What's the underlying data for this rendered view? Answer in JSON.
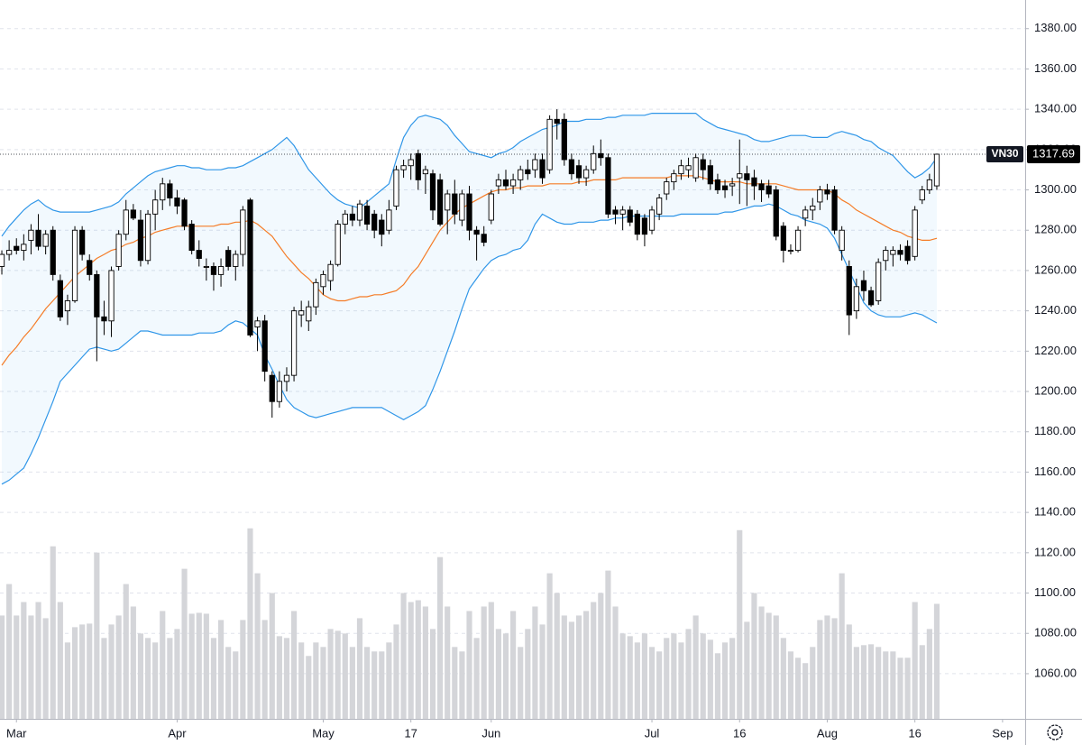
{
  "chart_data": {
    "type": "candlestick",
    "symbol": "VN30",
    "open": [
      1262,
      1268,
      1272,
      1270,
      1275,
      1280,
      1272,
      1280,
      1255,
      1240,
      1245,
      1280,
      1265,
      1258,
      1237,
      1235,
      1262,
      1278,
      1290,
      1285,
      1265,
      1288,
      1295,
      1303,
      1296,
      1295,
      1283,
      1270,
      1262,
      1262,
      1258,
      1270,
      1262,
      1268,
      1295,
      1232,
      1235,
      1208,
      1195,
      1205,
      1208,
      1238,
      1235,
      1242,
      1252,
      1255,
      1263,
      1283,
      1288,
      1285,
      1292,
      1288,
      1285,
      1280,
      1292,
      1310,
      1312,
      1318,
      1308,
      1308,
      1305,
      1290,
      1298,
      1285,
      1298,
      1280,
      1278,
      1285,
      1302,
      1305,
      1302,
      1305,
      1310,
      1310,
      1315,
      1310,
      1335,
      1335,
      1315,
      1312,
      1306,
      1310,
      1318,
      1316,
      1290,
      1288,
      1290,
      1288,
      1286,
      1280,
      1288,
      1298,
      1304,
      1308,
      1310,
      1306,
      1315,
      1312,
      1305,
      1302,
      1302,
      1306,
      1308,
      1306,
      1303,
      1302,
      1300,
      1282,
      1270,
      1270,
      1286,
      1290,
      1294,
      1300,
      1300,
      1270,
      1262,
      1240,
      1255,
      1250,
      1245,
      1265,
      1268,
      1270,
      1272,
      1267,
      1295,
      1300,
      1302
    ],
    "high": [
      1270,
      1275,
      1276,
      1278,
      1283,
      1288,
      1280,
      1282,
      1258,
      1248,
      1282,
      1282,
      1268,
      1260,
      1245,
      1262,
      1280,
      1295,
      1293,
      1290,
      1290,
      1300,
      1306,
      1305,
      1300,
      1296,
      1285,
      1275,
      1266,
      1264,
      1266,
      1272,
      1270,
      1292,
      1296,
      1237,
      1238,
      1210,
      1210,
      1212,
      1242,
      1245,
      1245,
      1256,
      1260,
      1265,
      1285,
      1290,
      1292,
      1295,
      1295,
      1290,
      1288,
      1295,
      1312,
      1315,
      1318,
      1320,
      1312,
      1310,
      1308,
      1300,
      1305,
      1300,
      1302,
      1282,
      1282,
      1300,
      1308,
      1310,
      1308,
      1312,
      1315,
      1318,
      1318,
      1337,
      1340,
      1338,
      1318,
      1315,
      1312,
      1322,
      1325,
      1318,
      1292,
      1292,
      1292,
      1290,
      1288,
      1292,
      1298,
      1306,
      1310,
      1315,
      1316,
      1318,
      1318,
      1315,
      1308,
      1305,
      1306,
      1325,
      1312,
      1310,
      1305,
      1305,
      1302,
      1284,
      1273,
      1282,
      1292,
      1296,
      1302,
      1303,
      1302,
      1282,
      1265,
      1256,
      1260,
      1252,
      1266,
      1272,
      1272,
      1273,
      1275,
      1292,
      1302,
      1308,
      1318
    ],
    "low": [
      1258,
      1265,
      1268,
      1265,
      1268,
      1270,
      1268,
      1255,
      1235,
      1233,
      1244,
      1265,
      1255,
      1215,
      1228,
      1227,
      1260,
      1275,
      1285,
      1262,
      1263,
      1280,
      1290,
      1292,
      1288,
      1280,
      1268,
      1262,
      1255,
      1250,
      1252,
      1260,
      1255,
      1262,
      1227,
      1220,
      1205,
      1187,
      1192,
      1200,
      1205,
      1232,
      1230,
      1238,
      1248,
      1250,
      1262,
      1278,
      1282,
      1282,
      1280,
      1276,
      1272,
      1278,
      1290,
      1306,
      1305,
      1300,
      1298,
      1285,
      1282,
      1278,
      1283,
      1282,
      1275,
      1265,
      1272,
      1283,
      1298,
      1300,
      1298,
      1300,
      1305,
      1306,
      1303,
      1308,
      1325,
      1312,
      1305,
      1303,
      1302,
      1308,
      1312,
      1286,
      1283,
      1280,
      1282,
      1275,
      1272,
      1278,
      1285,
      1295,
      1300,
      1305,
      1306,
      1304,
      1305,
      1300,
      1298,
      1296,
      1297,
      1293,
      1292,
      1295,
      1294,
      1296,
      1275,
      1264,
      1268,
      1269,
      1282,
      1285,
      1290,
      1295,
      1278,
      1265,
      1228,
      1236,
      1245,
      1242,
      1243,
      1260,
      1262,
      1265,
      1263,
      1265,
      1293,
      1298,
      1300
    ],
    "close": [
      1268,
      1270,
      1270,
      1273,
      1280,
      1272,
      1278,
      1258,
      1237,
      1245,
      1280,
      1268,
      1258,
      1237,
      1235,
      1260,
      1278,
      1290,
      1286,
      1265,
      1288,
      1295,
      1303,
      1296,
      1292,
      1282,
      1270,
      1266,
      1262,
      1258,
      1262,
      1262,
      1268,
      1290,
      1228,
      1235,
      1210,
      1195,
      1205,
      1208,
      1240,
      1240,
      1242,
      1254,
      1258,
      1263,
      1283,
      1288,
      1285,
      1293,
      1283,
      1280,
      1278,
      1290,
      1310,
      1312,
      1315,
      1305,
      1310,
      1290,
      1283,
      1298,
      1288,
      1298,
      1280,
      1278,
      1274,
      1298,
      1305,
      1302,
      1305,
      1310,
      1308,
      1315,
      1306,
      1335,
      1333,
      1315,
      1308,
      1306,
      1310,
      1318,
      1316,
      1288,
      1288,
      1290,
      1284,
      1278,
      1278,
      1290,
      1296,
      1304,
      1308,
      1312,
      1312,
      1316,
      1310,
      1303,
      1300,
      1300,
      1303,
      1308,
      1305,
      1302,
      1300,
      1298,
      1277,
      1270,
      1270,
      1280,
      1290,
      1292,
      1300,
      1298,
      1280,
      1280,
      1238,
      1252,
      1250,
      1243,
      1264,
      1270,
      1270,
      1268,
      1265,
      1290,
      1300,
      1305,
      1317.69
    ],
    "volume": [
      115,
      150,
      115,
      130,
      115,
      130,
      112,
      192,
      130,
      85,
      102,
      105,
      106,
      185,
      90,
      105,
      115,
      150,
      125,
      95,
      90,
      85,
      120,
      90,
      100,
      167,
      117,
      118,
      117,
      90,
      110,
      80,
      75,
      110,
      212,
      162,
      110,
      140,
      92,
      90,
      120,
      85,
      70,
      85,
      80,
      100,
      98,
      95,
      80,
      112,
      80,
      75,
      75,
      85,
      105,
      140,
      130,
      132,
      125,
      100,
      180,
      125,
      80,
      75,
      120,
      90,
      125,
      130,
      100,
      95,
      120,
      80,
      100,
      125,
      105,
      162,
      140,
      115,
      108,
      115,
      120,
      130,
      140,
      165,
      125,
      95,
      92,
      85,
      95,
      80,
      75,
      90,
      95,
      85,
      100,
      115,
      95,
      88,
      73,
      85,
      90,
      210,
      108,
      140,
      125,
      118,
      115,
      90,
      75,
      68,
      62,
      80,
      110,
      115,
      112,
      162,
      105,
      80,
      82,
      83,
      80,
      75,
      75,
      68,
      68,
      130,
      82,
      100,
      128
    ],
    "volume_lim": [
      0,
      800
    ],
    "bands": {
      "upper": [
        1277,
        1282,
        1286,
        1290,
        1293,
        1295,
        1292,
        1290,
        1289,
        1289,
        1289,
        1289,
        1289,
        1290,
        1291,
        1292,
        1294,
        1298,
        1301,
        1304,
        1307,
        1309,
        1310,
        1311,
        1312,
        1312,
        1311,
        1311,
        1310,
        1310,
        1310,
        1311,
        1311,
        1312,
        1314,
        1316,
        1318,
        1320,
        1323,
        1326,
        1322,
        1316,
        1310,
        1306,
        1302,
        1298,
        1295,
        1293,
        1292,
        1291,
        1294,
        1297,
        1300,
        1303,
        1315,
        1326,
        1332,
        1336,
        1337,
        1336,
        1335,
        1332,
        1327,
        1323,
        1319,
        1318,
        1317,
        1316,
        1318,
        1319,
        1321,
        1324,
        1326,
        1328,
        1330,
        1331,
        1332,
        1334,
        1334,
        1334,
        1335,
        1335,
        1335,
        1336,
        1336,
        1337,
        1337,
        1337,
        1337,
        1338,
        1338,
        1338,
        1338,
        1338,
        1338,
        1338,
        1335,
        1333,
        1331,
        1330,
        1329,
        1328,
        1327,
        1325,
        1324,
        1324,
        1325,
        1326,
        1327,
        1327,
        1327,
        1326,
        1326,
        1326,
        1328,
        1329,
        1328,
        1327,
        1325,
        1324,
        1321,
        1319,
        1317,
        1313,
        1309,
        1306,
        1308,
        1311,
        1316
      ],
      "middle": [
        1213,
        1218,
        1222,
        1227,
        1231,
        1236,
        1241,
        1245,
        1249,
        1253,
        1257,
        1260,
        1263,
        1266,
        1268,
        1270,
        1271,
        1273,
        1274,
        1276,
        1277,
        1279,
        1280,
        1281,
        1282,
        1282,
        1282,
        1282,
        1282,
        1282,
        1283,
        1283,
        1284,
        1284,
        1285,
        1283,
        1280,
        1277,
        1272,
        1267,
        1263,
        1259,
        1256,
        1252,
        1248,
        1246,
        1245,
        1245,
        1246,
        1247,
        1247,
        1248,
        1248,
        1249,
        1250,
        1253,
        1258,
        1262,
        1268,
        1274,
        1280,
        1284,
        1288,
        1291,
        1293,
        1295,
        1297,
        1299,
        1300,
        1300,
        1301,
        1301,
        1302,
        1302,
        1302,
        1303,
        1303,
        1303,
        1303,
        1304,
        1304,
        1305,
        1305,
        1305,
        1305,
        1306,
        1306,
        1306,
        1306,
        1306,
        1306,
        1306,
        1307,
        1307,
        1307,
        1307,
        1306,
        1305,
        1304,
        1304,
        1304,
        1304,
        1303,
        1303,
        1303,
        1303,
        1303,
        1302,
        1301,
        1300,
        1300,
        1300,
        1300,
        1300,
        1298,
        1295,
        1293,
        1290,
        1288,
        1286,
        1284,
        1282,
        1280,
        1279,
        1277,
        1276,
        1275,
        1275,
        1276
      ],
      "lower": [
        1154,
        1156,
        1159,
        1162,
        1169,
        1177,
        1186,
        1195,
        1205,
        1209,
        1213,
        1217,
        1221,
        1222,
        1221,
        1220,
        1221,
        1224,
        1227,
        1230,
        1230,
        1229,
        1228,
        1228,
        1228,
        1228,
        1228,
        1229,
        1229,
        1229,
        1230,
        1233,
        1235,
        1234,
        1231,
        1228,
        1218,
        1211,
        1203,
        1196,
        1192,
        1190,
        1188,
        1187,
        1188,
        1189,
        1190,
        1191,
        1192,
        1192,
        1192,
        1192,
        1192,
        1190,
        1188,
        1186,
        1188,
        1190,
        1193,
        1201,
        1210,
        1220,
        1230,
        1241,
        1251,
        1256,
        1261,
        1265,
        1267,
        1268,
        1270,
        1271,
        1275,
        1283,
        1288,
        1286,
        1284,
        1283,
        1283,
        1284,
        1284,
        1284,
        1285,
        1285,
        1286,
        1286,
        1287,
        1287,
        1287,
        1287,
        1287,
        1287,
        1287,
        1288,
        1288,
        1288,
        1288,
        1288,
        1288,
        1289,
        1289,
        1290,
        1291,
        1292,
        1292,
        1293,
        1292,
        1290,
        1288,
        1287,
        1285,
        1284,
        1283,
        1281,
        1276,
        1268,
        1260,
        1252,
        1244,
        1240,
        1238,
        1237,
        1237,
        1237,
        1238,
        1239,
        1238,
        1236,
        1234
      ],
      "color": "#2f96e8",
      "middle_color": "#f57c27",
      "fill": "#2196f3"
    },
    "up_color": "#ffffff",
    "down_color": "#000000",
    "volume_color": "#d4d5d9",
    "ylim": [
      1037.6,
      1394.2
    ],
    "yticks": [
      {
        "value": 1060,
        "label": "1060.00"
      },
      {
        "value": 1080,
        "label": "1080.00"
      },
      {
        "value": 1100,
        "label": "1100.00"
      },
      {
        "value": 1120,
        "label": "1120.00"
      },
      {
        "value": 1140,
        "label": "1140.00"
      },
      {
        "value": 1160,
        "label": "1160.00"
      },
      {
        "value": 1180,
        "label": "1180.00"
      },
      {
        "value": 1200,
        "label": "1200.00"
      },
      {
        "value": 1220,
        "label": "1220.00"
      },
      {
        "value": 1240,
        "label": "1240.00"
      },
      {
        "value": 1260,
        "label": "1260.00"
      },
      {
        "value": 1280,
        "label": "1280.00"
      },
      {
        "value": 1300,
        "label": "1300.00"
      },
      {
        "value": 1320,
        "label": "1320.00"
      },
      {
        "value": 1340,
        "label": "1340.00"
      },
      {
        "value": 1360,
        "label": "1360.00"
      },
      {
        "value": 1380,
        "label": "1380.00"
      }
    ],
    "xlim": [
      -0.25,
      140.1
    ],
    "xticks": [
      {
        "value": 2,
        "label": "Mar"
      },
      {
        "value": 24,
        "label": "Apr"
      },
      {
        "value": 44,
        "label": "May"
      },
      {
        "value": 56,
        "label": "17"
      },
      {
        "value": 67,
        "label": "Jun"
      },
      {
        "value": 89,
        "label": "Jul"
      },
      {
        "value": 101,
        "label": "16"
      },
      {
        "value": 113,
        "label": "Aug"
      },
      {
        "value": 125,
        "label": "16"
      },
      {
        "value": 137,
        "label": "Sep"
      }
    ],
    "grid": true
  }
}
